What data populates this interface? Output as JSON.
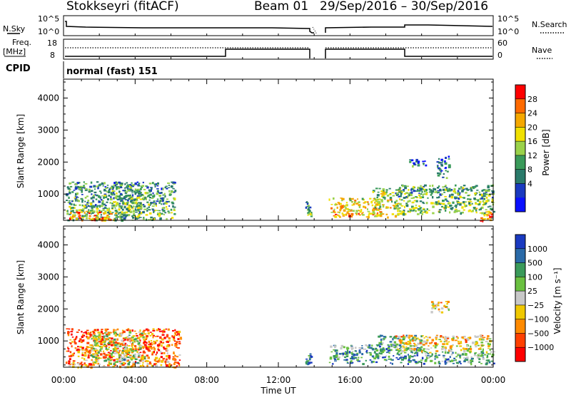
{
  "header": {
    "title": "Stokkseyri (fitACF)",
    "beam": "Beam 01",
    "dates": "29/Sep/2016 – 30/Sep/2016"
  },
  "status": {
    "nsky_label": "N.Sky",
    "nsky_ticks": [
      "10^5",
      "10^0"
    ],
    "nsearch_label": "N.Search",
    "nsearch_ticks": [
      "10^5",
      "10^0"
    ],
    "freq_label": "Freq.",
    "freq_unit": "[MHz]",
    "freq_ticks": [
      "18",
      "8"
    ],
    "nave_label": "Nave",
    "nave_ticks": [
      "60",
      "0"
    ],
    "cpid_label": "CPID",
    "cpid_value": "normal (fast) 151"
  },
  "x_axis": {
    "label": "Time UT",
    "ticks": [
      "00:00",
      "04:00",
      "08:00",
      "12:00",
      "16:00",
      "20:00",
      "00:00"
    ]
  },
  "chart_data": [
    {
      "type": "heatmap",
      "panel": "power",
      "ylabel": "Slant Range [km]",
      "yticks": [
        "1000",
        "2000",
        "3000",
        "4000"
      ],
      "ylim": [
        180,
        4590
      ],
      "xlim_hours": [
        0,
        24
      ],
      "colorbar_label": "Power [dB]",
      "colorbar_ticks": [
        "28",
        "24",
        "20",
        "16",
        "12",
        "8",
        "4"
      ],
      "colorbar_colors": [
        "#ff0000",
        "#ff6a00",
        "#f5a800",
        "#f0e000",
        "#9ad24a",
        "#3a9a5a",
        "#2a7a6a",
        "#1a3ac0",
        "#0a10ff"
      ],
      "patches": [
        {
          "t0": 0.1,
          "t1": 6.2,
          "r0": 200,
          "r1": 1400,
          "level": 0.45
        },
        {
          "t0": 0.3,
          "t1": 2.6,
          "r0": 200,
          "r1": 500,
          "level": 0.85
        },
        {
          "t0": 2.6,
          "t1": 4.3,
          "r0": 300,
          "r1": 1300,
          "level": 0.5
        },
        {
          "t0": 13.5,
          "t1": 13.8,
          "r0": 300,
          "r1": 800,
          "level": 0.45
        },
        {
          "t0": 14.8,
          "t1": 17.5,
          "r0": 300,
          "r1": 900,
          "level": 0.75
        },
        {
          "t0": 17.2,
          "t1": 18.8,
          "r0": 300,
          "r1": 1200,
          "level": 0.65
        },
        {
          "t0": 18.5,
          "t1": 24.0,
          "r0": 400,
          "r1": 1300,
          "level": 0.5
        },
        {
          "t0": 23.2,
          "t1": 24.0,
          "r0": 180,
          "r1": 450,
          "level": 0.85
        },
        {
          "t0": 19.2,
          "t1": 20.2,
          "r0": 1900,
          "r1": 2100,
          "level": 0.3
        },
        {
          "t0": 20.8,
          "t1": 21.5,
          "r0": 1500,
          "r1": 2200,
          "level": 0.3
        }
      ]
    },
    {
      "type": "heatmap",
      "panel": "velocity",
      "ylabel": "Slant Range [km]",
      "yticks": [
        "1000",
        "2000",
        "3000",
        "4000"
      ],
      "ylim": [
        180,
        4590
      ],
      "xlim_hours": [
        0,
        24
      ],
      "colorbar_label": "Velocity [m s⁻¹]",
      "colorbar_ticks": [
        "1000",
        "500",
        "100",
        "25",
        "−25",
        "−100",
        "−500",
        "−1000"
      ],
      "colorbar_colors": [
        "#1a3ac0",
        "#2a6aa8",
        "#3a9a5a",
        "#6ac040",
        "#c8c8c8",
        "#f0c800",
        "#ff8a00",
        "#ff4000",
        "#ff0000"
      ],
      "patches": [
        {
          "t0": 0.1,
          "t1": 6.5,
          "r0": 200,
          "r1": 1400,
          "level": 0.3
        },
        {
          "t0": 1.5,
          "t1": 4.5,
          "r0": 300,
          "r1": 1300,
          "level": 0.6
        },
        {
          "t0": 13.5,
          "t1": 13.8,
          "r0": 300,
          "r1": 700,
          "level": 0.8
        },
        {
          "t0": 14.8,
          "t1": 17.5,
          "r0": 300,
          "r1": 900,
          "level": 0.8
        },
        {
          "t0": 17.4,
          "t1": 20.0,
          "r0": 300,
          "r1": 1200,
          "level": 0.8
        },
        {
          "t0": 18.5,
          "t1": 23.8,
          "r0": 700,
          "r1": 1200,
          "level": 0.5
        },
        {
          "t0": 20.0,
          "t1": 24.0,
          "r0": 300,
          "r1": 700,
          "level": 0.75
        },
        {
          "t0": 20.5,
          "t1": 21.5,
          "r0": 1900,
          "r1": 2300,
          "level": 0.5
        }
      ]
    }
  ]
}
